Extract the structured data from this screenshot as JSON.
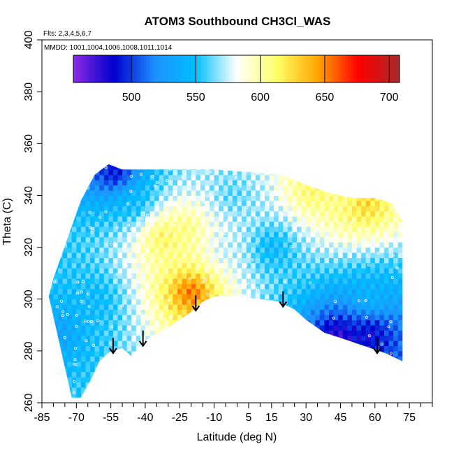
{
  "chart_data": {
    "type": "heatmap",
    "title": "ATOM3 Southbound CH3Cl_WAS",
    "subtitle_flights": "Flts: 2,3,4,5,6,7",
    "subtitle_dates": "MMDD: 1001,1004,1006,1008,1011,1014",
    "xlabel": "Latitude (deg N)",
    "ylabel": "Theta (C)",
    "xlim": [
      -85,
      85
    ],
    "ylim": [
      260,
      400
    ],
    "x_ticks": [
      -85,
      -70,
      -55,
      -40,
      -25,
      -10,
      5,
      15,
      30,
      45,
      60,
      75
    ],
    "x_minor_ticks": [
      -80,
      -75,
      -65,
      -60,
      -50,
      -45,
      -35,
      -30,
      -20,
      -15,
      -5,
      0,
      10,
      20,
      25,
      35,
      40,
      50,
      55,
      65,
      70,
      80,
      85
    ],
    "y_ticks": [
      260,
      280,
      300,
      320,
      340,
      360,
      380,
      400
    ],
    "colorbar": {
      "range": [
        455,
        708
      ],
      "ticks": [
        500,
        550,
        600,
        650,
        700
      ],
      "colors": [
        "#8a2be2",
        "#0000cd",
        "#1e90ff",
        "#00bfff",
        "#ffffff",
        "#ffff66",
        "#ffa500",
        "#ff0000",
        "#a52a2a"
      ]
    },
    "tropopause_arrows_lat": [
      -54,
      -41,
      -18,
      20,
      61
    ],
    "surface_boundary": [
      [
        -72,
        262
      ],
      [
        -68,
        262
      ],
      [
        -63,
        270
      ],
      [
        -60,
        276
      ],
      [
        -55,
        280
      ],
      [
        -50,
        281
      ],
      [
        -46,
        278
      ],
      [
        -40,
        284
      ],
      [
        -30,
        289
      ],
      [
        -20,
        295
      ],
      [
        -15,
        299
      ],
      [
        -10,
        301
      ],
      [
        0,
        301
      ],
      [
        10,
        300
      ],
      [
        18,
        299
      ],
      [
        25,
        296
      ],
      [
        30,
        292
      ],
      [
        38,
        287
      ],
      [
        45,
        285
      ],
      [
        55,
        282
      ],
      [
        65,
        279
      ],
      [
        72,
        276
      ]
    ],
    "top_boundary": [
      [
        -82,
        301
      ],
      [
        -80,
        308
      ],
      [
        -76,
        318
      ],
      [
        -72,
        328
      ],
      [
        -68,
        338
      ],
      [
        -62,
        348
      ],
      [
        -56,
        352
      ],
      [
        -50,
        350
      ],
      [
        -30,
        350
      ],
      [
        -10,
        350
      ],
      [
        5,
        349
      ],
      [
        20,
        348
      ],
      [
        30,
        344
      ],
      [
        40,
        341
      ],
      [
        50,
        339
      ],
      [
        60,
        339
      ],
      [
        67,
        337
      ],
      [
        72,
        330
      ],
      [
        72,
        276
      ]
    ],
    "field_features": [
      {
        "lat": -53,
        "theta": 349,
        "value": 480
      },
      {
        "lat": -45,
        "theta": 338,
        "value": 545
      },
      {
        "lat": -32,
        "theta": 324,
        "value": 620
      },
      {
        "lat": -22,
        "theta": 327,
        "value": 610
      },
      {
        "lat": -20,
        "theta": 303,
        "value": 665
      },
      {
        "lat": -5,
        "theta": 320,
        "value": 575
      },
      {
        "lat": -2,
        "theta": 340,
        "value": 560
      },
      {
        "lat": 15,
        "theta": 320,
        "value": 540
      },
      {
        "lat": 33,
        "theta": 342,
        "value": 615
      },
      {
        "lat": 47,
        "theta": 339,
        "value": 605
      },
      {
        "lat": 55,
        "theta": 337,
        "value": 635
      },
      {
        "lat": 58,
        "theta": 300,
        "value": 545
      },
      {
        "lat": 44,
        "theta": 285,
        "value": 465
      },
      {
        "lat": 58,
        "theta": 287,
        "value": 480
      },
      {
        "lat": -78,
        "theta": 288,
        "value": 530
      },
      {
        "lat": -62,
        "theta": 300,
        "value": 545
      }
    ]
  }
}
